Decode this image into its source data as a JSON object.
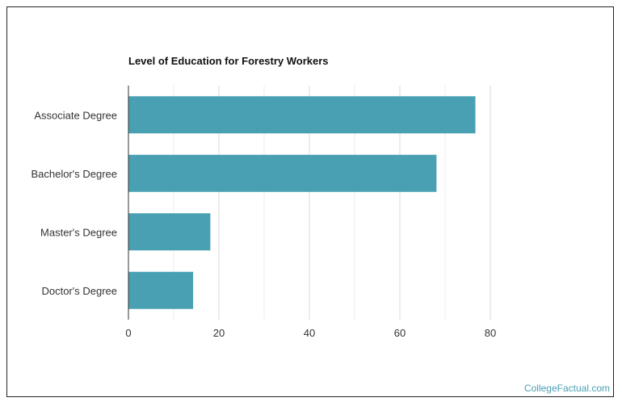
{
  "chart_data": {
    "type": "bar",
    "orientation": "horizontal",
    "title": "Level of Education for Forestry Workers",
    "categories": [
      "Associate Degree",
      "Bachelor's Degree",
      "Master's Degree",
      "Doctor's Degree"
    ],
    "values": [
      76.7,
      68.1,
      18.1,
      14.3
    ],
    "xlim": [
      0,
      80
    ],
    "xticks": [
      0,
      20,
      40,
      60,
      80
    ],
    "xlabel": "",
    "ylabel": "",
    "bar_color": "#4aa0b3",
    "grid": true
  },
  "footer": {
    "source": "CollegeFactual.com"
  }
}
